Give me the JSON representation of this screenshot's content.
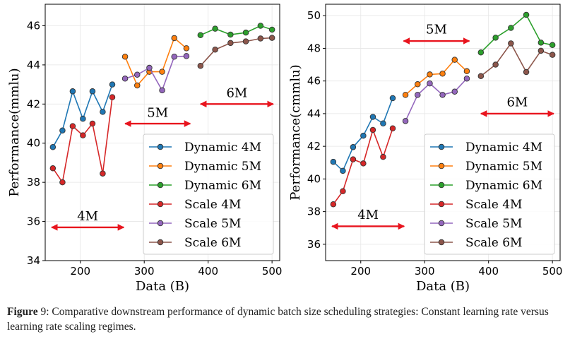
{
  "caption": {
    "label": "Figure",
    "number": "9",
    "text": ": Comparative downstream performance of dynamic batch size scheduling strategies: Constant learning rate versus learning rate scaling regimes."
  },
  "colors": {
    "dynamic4": "#1f77b4",
    "dynamic5": "#ff7f0e",
    "dynamic6": "#2ca02c",
    "scale4": "#d62728",
    "scale5": "#9467bd",
    "scale6": "#8c564b",
    "arrow": "#e8141e"
  },
  "chart_data": [
    {
      "type": "line",
      "xlabel": "Data (B)",
      "ylabel": "Performance(mmlu)",
      "xlim": [
        145,
        512
      ],
      "ylim": [
        34,
        47.1
      ],
      "xticks": [
        "200",
        "300",
        "400",
        "500"
      ],
      "yticks": [
        "34",
        "36",
        "38",
        "40",
        "42",
        "44",
        "46"
      ],
      "grid": true,
      "legend_position": "lower-right",
      "series": [
        {
          "name": "Dynamic 4M",
          "color_key": "dynamic4",
          "x": [
            157,
            172,
            188,
            204,
            219,
            235,
            250
          ],
          "y": [
            39.8,
            40.65,
            42.65,
            41.25,
            42.65,
            41.6,
            43.0
          ]
        },
        {
          "name": "Dynamic 5M",
          "color_key": "dynamic5",
          "x": [
            270,
            289,
            308,
            328,
            347,
            366
          ],
          "y": [
            44.42,
            42.95,
            43.65,
            43.65,
            45.37,
            44.85
          ]
        },
        {
          "name": "Dynamic 6M",
          "color_key": "dynamic6",
          "x": [
            388,
            411,
            435,
            459,
            482,
            500
          ],
          "y": [
            45.52,
            45.85,
            45.55,
            45.65,
            46.0,
            45.8
          ]
        },
        {
          "name": "Scale 4M",
          "color_key": "scale4",
          "x": [
            157,
            172,
            188,
            204,
            219,
            235,
            250
          ],
          "y": [
            38.72,
            38.0,
            40.87,
            40.4,
            41.0,
            38.45,
            42.35
          ]
        },
        {
          "name": "Scale 5M",
          "color_key": "scale5",
          "x": [
            270,
            289,
            308,
            328,
            347,
            366
          ],
          "y": [
            43.3,
            43.5,
            43.85,
            42.7,
            44.42,
            44.45
          ]
        },
        {
          "name": "Scale 6M",
          "color_key": "scale6",
          "x": [
            388,
            411,
            435,
            459,
            482,
            500
          ],
          "y": [
            43.95,
            44.78,
            45.12,
            45.2,
            45.35,
            45.38
          ]
        }
      ],
      "annotations": [
        {
          "text": "4M",
          "x_from": 155,
          "x_to": 268,
          "y": 35.7,
          "text_y": 36.05
        },
        {
          "text": "5M",
          "x_from": 270,
          "x_to": 372,
          "y": 41.0,
          "text_y": 41.35
        },
        {
          "text": "6M",
          "x_from": 388,
          "x_to": 502,
          "y": 42.0,
          "text_y": 42.35
        }
      ]
    },
    {
      "type": "line",
      "xlabel": "Data (B)",
      "ylabel": "Performance(cmmlu)",
      "xlim": [
        145,
        512
      ],
      "ylim": [
        35.0,
        50.7
      ],
      "xticks": [
        "200",
        "300",
        "400",
        "500"
      ],
      "yticks": [
        "36",
        "38",
        "40",
        "42",
        "44",
        "46",
        "48",
        "50"
      ],
      "grid": true,
      "legend_position": "lower-right",
      "series": [
        {
          "name": "Dynamic 4M",
          "color_key": "dynamic4",
          "x": [
            157,
            172,
            188,
            204,
            219,
            235,
            250
          ],
          "y": [
            41.05,
            40.5,
            41.95,
            42.65,
            43.8,
            43.4,
            44.95
          ]
        },
        {
          "name": "Dynamic 5M",
          "color_key": "dynamic5",
          "x": [
            270,
            289,
            308,
            328,
            347,
            366
          ],
          "y": [
            45.15,
            45.8,
            46.4,
            46.45,
            47.3,
            46.6
          ]
        },
        {
          "name": "Dynamic 6M",
          "color_key": "dynamic6",
          "x": [
            388,
            411,
            435,
            459,
            482,
            500
          ],
          "y": [
            47.75,
            48.65,
            49.25,
            50.05,
            48.35,
            48.2
          ]
        },
        {
          "name": "Scale 4M",
          "color_key": "scale4",
          "x": [
            157,
            172,
            188,
            204,
            219,
            235,
            250
          ],
          "y": [
            38.45,
            39.25,
            41.2,
            40.95,
            43.0,
            41.35,
            43.1
          ]
        },
        {
          "name": "Scale 5M",
          "color_key": "scale5",
          "x": [
            270,
            289,
            308,
            328,
            347,
            366
          ],
          "y": [
            43.55,
            45.15,
            45.85,
            45.15,
            45.35,
            46.15
          ]
        },
        {
          "name": "Scale 6M",
          "color_key": "scale6",
          "x": [
            388,
            411,
            435,
            459,
            482,
            500
          ],
          "y": [
            46.3,
            47.0,
            48.3,
            46.55,
            47.85,
            47.6
          ]
        }
      ],
      "annotations": [
        {
          "text": "4M",
          "x_from": 155,
          "x_to": 268,
          "y": 37.1,
          "text_y": 37.55
        },
        {
          "text": "5M",
          "x_from": 267,
          "x_to": 370,
          "y": 48.45,
          "text_y": 48.9
        },
        {
          "text": "6M",
          "x_from": 388,
          "x_to": 502,
          "y": 44.0,
          "text_y": 44.45
        }
      ]
    }
  ]
}
